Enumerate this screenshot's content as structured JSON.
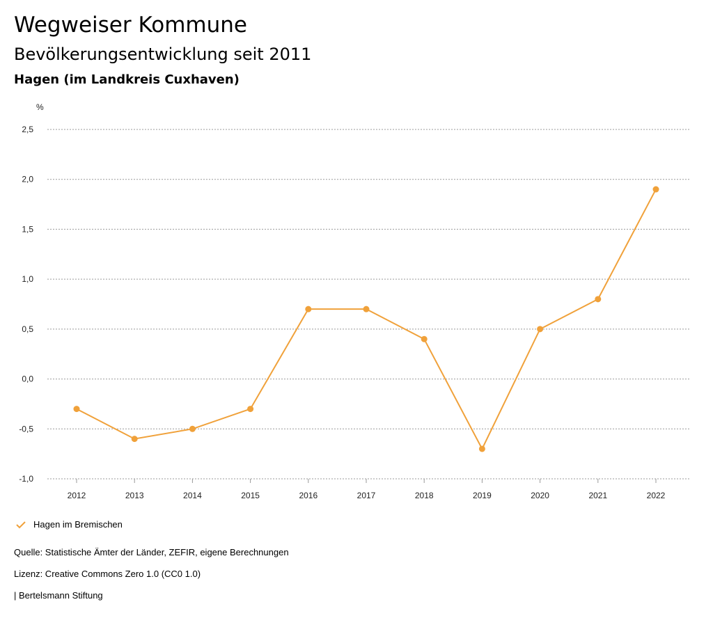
{
  "header": {
    "title": "Wegweiser Kommune",
    "subtitle": "Bevölkerungsentwicklung seit 2011",
    "region": "Hagen (im Landkreis Cuxhaven)"
  },
  "chart_data": {
    "type": "line",
    "ylabel": "%",
    "x": [
      "2012",
      "2013",
      "2014",
      "2015",
      "2016",
      "2017",
      "2018",
      "2019",
      "2020",
      "2021",
      "2022"
    ],
    "series": [
      {
        "name": "Hagen im Bremischen",
        "values": [
          -0.3,
          -0.6,
          -0.5,
          -0.3,
          0.7,
          0.7,
          0.4,
          -0.7,
          0.5,
          0.8,
          1.9
        ]
      }
    ],
    "ylim": [
      -1.0,
      2.5
    ],
    "yticks": [
      "2,5",
      "2,0",
      "1,5",
      "1,0",
      "0,5",
      "0,0",
      "-0,5",
      "-1,0"
    ],
    "ytick_values": [
      2.5,
      2.0,
      1.5,
      1.0,
      0.5,
      0.0,
      -0.5,
      -1.0
    ],
    "grid": true,
    "legend_position": "bottom-left",
    "color": "#f0a13a"
  },
  "legend": {
    "label": "Hagen im Bremischen"
  },
  "footer": {
    "source": "Quelle: Statistische Ämter der Länder, ZEFIR, eigene Berechnungen",
    "license": "Lizenz: Creative Commons Zero 1.0 (CC0 1.0)",
    "publisher": "| Bertelsmann Stiftung"
  }
}
